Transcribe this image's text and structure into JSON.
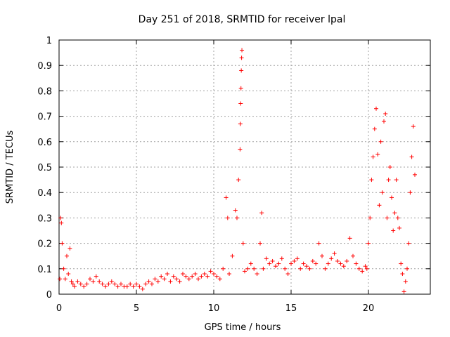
{
  "chart_data": {
    "type": "scatter",
    "title": "Day 251 of 2018, SRMTID for receiver lpal",
    "xlabel": "GPS time / hours",
    "ylabel": "SRMTID / TECUs",
    "xlim": [
      0,
      24
    ],
    "ylim": [
      0,
      1
    ],
    "xticks": [
      0,
      5,
      10,
      15,
      20
    ],
    "xtick_labels": [
      "0",
      "5",
      "10",
      "15",
      "20"
    ],
    "yticks": [
      0,
      0.1,
      0.2,
      0.3,
      0.4,
      0.5,
      0.6,
      0.7,
      0.8,
      0.9,
      1
    ],
    "ytick_labels": [
      "0",
      "0.1",
      "0.2",
      "0.3",
      "0.4",
      "0.5",
      "0.6",
      "0.7",
      "0.8",
      "0.9",
      "1"
    ],
    "grid": true,
    "marker": "+",
    "color": "#ff0000",
    "series": [
      {
        "name": "SRMTID",
        "x": [
          0.05,
          0.1,
          0.15,
          0.2,
          0.3,
          0.4,
          0.5,
          0.6,
          0.7,
          0.8,
          0.9,
          1.0,
          1.2,
          1.4,
          1.6,
          1.8,
          2.0,
          2.2,
          2.4,
          2.6,
          2.8,
          3.0,
          3.2,
          3.4,
          3.6,
          3.8,
          4.0,
          4.2,
          4.4,
          4.6,
          4.8,
          5.0,
          5.2,
          5.4,
          5.6,
          5.8,
          6.0,
          6.2,
          6.4,
          6.6,
          6.8,
          7.0,
          7.2,
          7.4,
          7.6,
          7.8,
          8.0,
          8.2,
          8.4,
          8.6,
          8.8,
          9.0,
          9.2,
          9.4,
          9.6,
          9.8,
          10.0,
          10.2,
          10.4,
          10.6,
          10.8,
          10.9,
          11.0,
          11.2,
          11.4,
          11.5,
          11.6,
          11.7,
          11.72,
          11.74,
          11.76,
          11.78,
          11.8,
          11.82,
          11.9,
          12.0,
          12.2,
          12.4,
          12.6,
          12.8,
          13.0,
          13.1,
          13.2,
          13.4,
          13.6,
          13.8,
          14.0,
          14.2,
          14.4,
          14.6,
          14.8,
          15.0,
          15.2,
          15.4,
          15.6,
          15.8,
          16.0,
          16.2,
          16.4,
          16.6,
          16.8,
          17.0,
          17.2,
          17.4,
          17.6,
          17.8,
          18.0,
          18.2,
          18.4,
          18.6,
          18.8,
          19.0,
          19.2,
          19.4,
          19.6,
          19.8,
          19.9,
          20.0,
          20.1,
          20.2,
          20.3,
          20.4,
          20.5,
          20.6,
          20.7,
          20.8,
          20.9,
          21.0,
          21.1,
          21.2,
          21.3,
          21.4,
          21.5,
          21.6,
          21.7,
          21.8,
          21.9,
          22.0,
          22.1,
          22.2,
          22.3,
          22.4,
          22.5,
          22.6,
          22.7,
          22.8,
          22.9,
          23.0
        ],
        "y": [
          0.06,
          0.3,
          0.28,
          0.2,
          0.1,
          0.06,
          0.15,
          0.08,
          0.18,
          0.05,
          0.04,
          0.03,
          0.05,
          0.04,
          0.03,
          0.04,
          0.06,
          0.05,
          0.07,
          0.05,
          0.04,
          0.03,
          0.04,
          0.05,
          0.04,
          0.03,
          0.04,
          0.03,
          0.03,
          0.04,
          0.03,
          0.04,
          0.03,
          0.02,
          0.04,
          0.05,
          0.04,
          0.06,
          0.05,
          0.07,
          0.06,
          0.08,
          0.05,
          0.07,
          0.06,
          0.05,
          0.08,
          0.07,
          0.06,
          0.07,
          0.08,
          0.06,
          0.07,
          0.08,
          0.07,
          0.09,
          0.08,
          0.07,
          0.06,
          0.1,
          0.38,
          0.3,
          0.08,
          0.15,
          0.33,
          0.3,
          0.45,
          0.57,
          0.67,
          0.75,
          0.81,
          0.88,
          0.93,
          0.96,
          0.2,
          0.09,
          0.1,
          0.12,
          0.1,
          0.08,
          0.2,
          0.32,
          0.1,
          0.14,
          0.12,
          0.13,
          0.11,
          0.12,
          0.14,
          0.1,
          0.08,
          0.12,
          0.13,
          0.14,
          0.1,
          0.12,
          0.11,
          0.1,
          0.13,
          0.12,
          0.2,
          0.15,
          0.1,
          0.12,
          0.14,
          0.16,
          0.13,
          0.12,
          0.11,
          0.13,
          0.22,
          0.15,
          0.12,
          0.1,
          0.09,
          0.11,
          0.1,
          0.2,
          0.3,
          0.45,
          0.54,
          0.65,
          0.73,
          0.55,
          0.35,
          0.6,
          0.4,
          0.68,
          0.71,
          0.3,
          0.45,
          0.5,
          0.38,
          0.25,
          0.32,
          0.45,
          0.3,
          0.26,
          0.12,
          0.08,
          0.01,
          0.05,
          0.1,
          0.2,
          0.4,
          0.54,
          0.66,
          0.47
        ]
      }
    ]
  }
}
